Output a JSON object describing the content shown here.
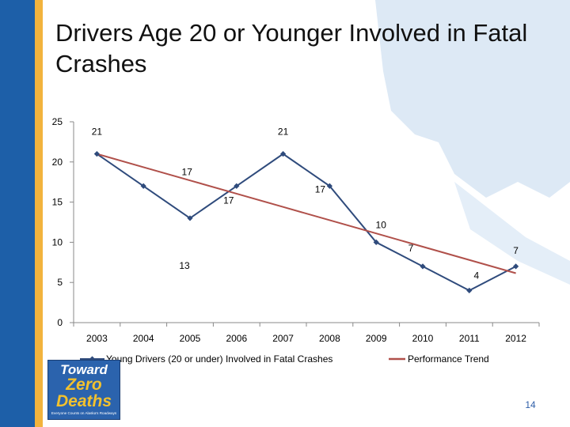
{
  "slide": {
    "title": "Drivers Age 20 or Younger Involved in Fatal Crashes",
    "page_number": "14",
    "colors": {
      "left_band": "#1d5fa8",
      "accent_band": "#f2b33d",
      "map": "#dde9f5"
    }
  },
  "logo": {
    "line1": "Toward",
    "line2": "Zero",
    "line3": "Deaths",
    "tagline": "Everyone Counts on Alaska's Roadways"
  },
  "chart_data": {
    "type": "line",
    "categories": [
      "2003",
      "2004",
      "2005",
      "2006",
      "2007",
      "2008",
      "2009",
      "2010",
      "2011",
      "2012"
    ],
    "series": [
      {
        "name": "Young Drivers (20 or under) Involved in Fatal Crashes",
        "values": [
          21,
          17,
          13,
          17,
          21,
          17,
          10,
          7,
          4,
          7
        ],
        "color": "#2f4b7c",
        "marker": "diamond"
      },
      {
        "name": "Performance Trend",
        "values": [
          21,
          19.35,
          17.7,
          16.05,
          14.4,
          12.75,
          11.1,
          9.45,
          7.8,
          6.15
        ],
        "color": "#b0504a",
        "marker": "none"
      }
    ],
    "yticks": [
      0,
      5,
      10,
      15,
      20,
      25
    ],
    "ylim": [
      0,
      25
    ],
    "grid": false,
    "legend": "bottom",
    "data_labels": true
  }
}
